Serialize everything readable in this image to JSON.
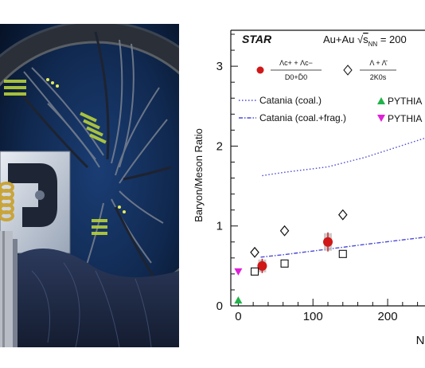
{
  "colors": {
    "catania_line": "#4a4ad8",
    "star_red": "#d01818",
    "pythia_green": "#22b24a",
    "pythia_magenta": "#e020d8",
    "axis": "#111111"
  },
  "chart_data": {
    "type": "scatter",
    "title": "STAR",
    "subtitle_prefix": "Au+Au ",
    "subtitle_sqrt": "√",
    "subtitle_s": "s",
    "subtitle_nn": "NN",
    "subtitle_suffix": " = 200",
    "ylabel": "Baryon/Meson Ratio",
    "xlabel_visible": "N",
    "xlim": [
      -10,
      250
    ],
    "ylim": [
      0,
      3.45
    ],
    "x_ticks": [
      "0",
      "100",
      "200"
    ],
    "y_ticks": [
      "0",
      "1",
      "2",
      "3"
    ],
    "legend": {
      "lambda_c_num": "Λc+ + Λc−",
      "lambda_c_den": "D0+D̄0",
      "lambda_num": "Λ + Λ̄",
      "lambda_den": "2K0s",
      "catania_coal": "Catania (coal.)",
      "catania_coal_frag": "Catania (coal.+frag.)",
      "pythia_1": "PYTHIA",
      "pythia_2": "PYTHIA"
    },
    "series": [
      {
        "name": "Λc+ + Λc− / D0+D̄0",
        "marker": "filled-circle",
        "x": [
          32,
          120
        ],
        "y": [
          0.5,
          0.8
        ],
        "err": [
          0.09,
          0.12
        ],
        "syst": [
          0.08,
          0.11
        ]
      },
      {
        "name": "Λ + Λ̄ / 2K0s",
        "marker": "open-diamond",
        "x": [
          22,
          62,
          140
        ],
        "y": [
          0.67,
          0.94,
          1.14
        ]
      },
      {
        "marker": "open-square",
        "x": [
          22,
          62,
          140
        ],
        "y": [
          0.43,
          0.53,
          0.65
        ]
      },
      {
        "name": "PYTHIA",
        "marker": "triangle-up",
        "x": [
          0
        ],
        "y": [
          0.07
        ]
      },
      {
        "name": "PYTHIA",
        "marker": "triangle-down",
        "x": [
          0
        ],
        "y": [
          0.43
        ]
      },
      {
        "name": "Catania (coal.)",
        "style": "dotted",
        "x": [
          32,
          60,
          120,
          170,
          250
        ],
        "y": [
          1.63,
          1.67,
          1.74,
          1.86,
          2.1
        ]
      },
      {
        "name": "Catania (coal.+frag.)",
        "style": "dash-dot",
        "x": [
          30,
          60,
          120,
          170,
          250
        ],
        "y": [
          0.61,
          0.64,
          0.71,
          0.77,
          0.86
        ]
      }
    ]
  }
}
